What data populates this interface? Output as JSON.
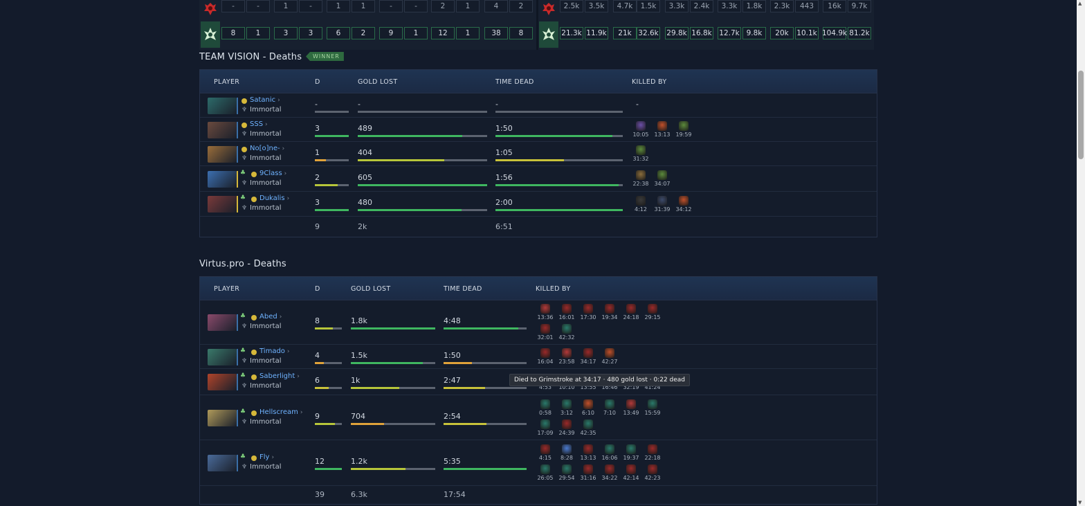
{
  "strip": {
    "dire_row": [
      "-",
      "-",
      "1",
      "-",
      "1",
      "1",
      "-",
      "-",
      "2",
      "1",
      "4",
      "2"
    ],
    "radiant_row": [
      "8",
      "1",
      "3",
      "3",
      "6",
      "2",
      "9",
      "1",
      "12",
      "1",
      "38",
      "8"
    ],
    "dire_right": [
      "2.5k",
      "3.5k",
      "4.7k",
      "1.5k",
      "3.3k",
      "2.4k",
      "3.3k",
      "1.8k",
      "2.3k",
      "443",
      "16k",
      "9.7k"
    ],
    "radiant_right": [
      "21.3k",
      "11.9k",
      "21k",
      "32.6k",
      "29.8k",
      "16.8k",
      "12.7k",
      "9.8k",
      "20k",
      "10.1k",
      "104.9k",
      "81.2k"
    ]
  },
  "vision": {
    "title": "TEAM VISION - Deaths",
    "winner": "WINNER",
    "headers": {
      "player": "PLAYER",
      "d": "D",
      "gold": "GOLD LOST",
      "time": "TIME DEAD",
      "killed": "KILLED BY"
    },
    "players": [
      {
        "name": "Satanic",
        "rank": "Immortal",
        "d": "-",
        "gold": "-",
        "time": "-",
        "killed": "-",
        "d_fill": 0,
        "gold_fill": 0,
        "time_fill": 0,
        "support": false,
        "portrait": "#2d6b6a",
        "kills": []
      },
      {
        "name": "SSS",
        "rank": "Immortal",
        "d": "3",
        "gold": "489",
        "time": "1:50",
        "d_fill": 1,
        "gold_fill": 0.81,
        "time_fill": 0.92,
        "support": false,
        "portrait": "#6a4a3e",
        "kills": [
          {
            "t": "10:05",
            "c": "#6b4fa8"
          },
          {
            "t": "13:13",
            "c": "#c0502b"
          },
          {
            "t": "19:59",
            "c": "#5c8a3c"
          }
        ]
      },
      {
        "name": "No[o]ne-",
        "rank": "Immortal",
        "d": "1",
        "gold": "404",
        "time": "1:05",
        "d_fill": 0.33,
        "gold_fill": 0.67,
        "time_fill": 0.54,
        "support": false,
        "portrait": "#9a6d3a",
        "kills": [
          {
            "t": "31:32",
            "c": "#5c8a3c"
          }
        ]
      },
      {
        "name": "9Class",
        "rank": "Immortal",
        "d": "2",
        "gold": "605",
        "time": "1:56",
        "d_fill": 0.67,
        "gold_fill": 1,
        "time_fill": 0.97,
        "support": true,
        "portrait": "#3c6fb0",
        "kills": [
          {
            "t": "22:38",
            "c": "#8a6d3c"
          },
          {
            "t": "34:07",
            "c": "#5c8a3c"
          }
        ]
      },
      {
        "name": "Dukalis",
        "rank": "Immortal",
        "d": "3",
        "gold": "480",
        "time": "2:00",
        "d_fill": 1,
        "gold_fill": 0.8,
        "time_fill": 1,
        "support": true,
        "portrait": "#7a3a3a",
        "kills": [
          {
            "t": "4:12",
            "c": "#3a3a3a"
          },
          {
            "t": "31:39",
            "c": "#3c4a6b"
          },
          {
            "t": "34:12",
            "c": "#c0502b"
          }
        ]
      }
    ],
    "totals": {
      "d": "9",
      "gold": "2k",
      "time": "6:51"
    }
  },
  "vp": {
    "title": "Virtus.pro - Deaths",
    "headers": {
      "player": "PLAYER",
      "d": "D",
      "gold": "GOLD LOST",
      "time": "TIME DEAD",
      "killed": "KILLED BY"
    },
    "players": [
      {
        "name": "Abed",
        "rank": "Immortal",
        "d": "8",
        "gold": "1.8k",
        "time": "4:48",
        "d_fill": 0.67,
        "gold_fill": 1,
        "time_fill": 0.9,
        "portrait": "#8a4a6b",
        "kills": [
          {
            "t": "13:36",
            "c": "#b33a3a"
          },
          {
            "t": "16:01",
            "c": "#9a2a2a"
          },
          {
            "t": "17:30",
            "c": "#9a2a2a"
          },
          {
            "t": "19:34",
            "c": "#9a2a2a"
          },
          {
            "t": "24:18",
            "c": "#9a2a2a"
          },
          {
            "t": "29:15",
            "c": "#9a2a2a"
          },
          {
            "t": "32:01",
            "c": "#9a2a2a"
          },
          {
            "t": "42:32",
            "c": "#2a7a6b"
          }
        ]
      },
      {
        "name": "Timado",
        "rank": "Immortal",
        "d": "4",
        "gold": "1.5k",
        "time": "1:50",
        "d_fill": 0.33,
        "gold_fill": 0.85,
        "time_fill": 0.34,
        "portrait": "#3a7a6b",
        "kills": [
          {
            "t": "16:04",
            "c": "#9a2a2a"
          },
          {
            "t": "23:58",
            "c": "#b33a3a"
          },
          {
            "t": "34:17",
            "c": "#9a2a2a"
          },
          {
            "t": "42:27",
            "c": "#c0502b"
          }
        ]
      },
      {
        "name": "Saberlight",
        "rank": "Immortal",
        "d": "6",
        "gold": "1k",
        "time": "2:47",
        "d_fill": 0.5,
        "gold_fill": 0.57,
        "time_fill": 0.5,
        "portrait": "#b0442a",
        "kills": [
          {
            "t": "4:53",
            "c": "#2a7a6b"
          },
          {
            "t": "10:10",
            "c": "#2a7a6b"
          },
          {
            "t": "13:55",
            "c": "#9a2a2a"
          },
          {
            "t": "16:46",
            "c": "#9a2a2a"
          },
          {
            "t": "32:19",
            "c": "#9a2a2a"
          },
          {
            "t": "41:24",
            "c": "#2a7a6b"
          }
        ]
      },
      {
        "name": "Hellscream",
        "rank": "Immortal",
        "d": "9",
        "gold": "704",
        "time": "2:54",
        "d_fill": 0.75,
        "gold_fill": 0.39,
        "time_fill": 0.52,
        "portrait": "#b09a5a",
        "kills": [
          {
            "t": "0:58",
            "c": "#2a7a6b"
          },
          {
            "t": "3:12",
            "c": "#2a7a6b"
          },
          {
            "t": "6:10",
            "c": "#c0502b"
          },
          {
            "t": "7:10",
            "c": "#2a7a6b"
          },
          {
            "t": "13:49",
            "c": "#b33a3a"
          },
          {
            "t": "15:59",
            "c": "#2a7a6b"
          },
          {
            "t": "17:09",
            "c": "#2a7a6b"
          },
          {
            "t": "24:39",
            "c": "#9a2a2a"
          },
          {
            "t": "42:35",
            "c": "#2a7a6b"
          }
        ]
      },
      {
        "name": "Fly",
        "rank": "Immortal",
        "d": "12",
        "gold": "1.2k",
        "time": "5:35",
        "d_fill": 1,
        "gold_fill": 0.65,
        "time_fill": 1,
        "portrait": "#4a6b9a",
        "kills": [
          {
            "t": "4:15",
            "c": "#9a2a2a"
          },
          {
            "t": "8:28",
            "c": "#4a7ad0"
          },
          {
            "t": "13:13",
            "c": "#9a2a2a"
          },
          {
            "t": "16:06",
            "c": "#2a7a6b"
          },
          {
            "t": "19:37",
            "c": "#2a7a6b"
          },
          {
            "t": "22:18",
            "c": "#9a2a2a"
          },
          {
            "t": "26:05",
            "c": "#2a7a6b"
          },
          {
            "t": "29:54",
            "c": "#2a7a6b"
          },
          {
            "t": "31:16",
            "c": "#9a2a2a"
          },
          {
            "t": "34:22",
            "c": "#9a2a2a"
          },
          {
            "t": "42:14",
            "c": "#9a2a2a"
          },
          {
            "t": "42:23",
            "c": "#9a2a2a"
          }
        ]
      }
    ],
    "totals": {
      "d": "39",
      "gold": "6.3k",
      "time": "17:54"
    }
  },
  "tooltip": "Died to Grimstroke at 34:17 · 480 gold lost · 0:22 dead",
  "icons": {
    "dire": "dire-icon",
    "radiant": "radiant-icon",
    "verified": "verified-icon",
    "support": "support-icon",
    "trophy": "trophy-icon",
    "chevron": "chevron-right-icon"
  },
  "colors": {
    "green": "#3fb760",
    "yellow": "#c8c23a",
    "orange": "#e0a23a",
    "link": "#6fb3ff"
  }
}
